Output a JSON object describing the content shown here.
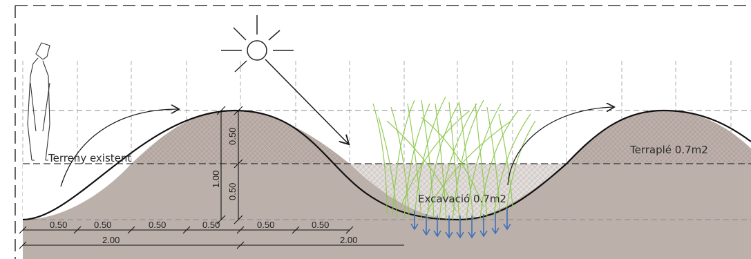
{
  "labels": {
    "existing_ground": "Terreny existent",
    "embankment": "Terraplé 0.7m2",
    "excavation": "Excavació 0.7m2"
  },
  "dimensions": {
    "vertical_upper": "0.50",
    "vertical_lower": "0.50",
    "vertical_total": "1.00",
    "horizontal_segments": [
      "0.50",
      "0.50",
      "0.50",
      "0.50",
      "0.50",
      "0.50"
    ],
    "horizontal_totals": [
      "2.00",
      "2.00"
    ]
  },
  "colors": {
    "ground": "#bcb0ab",
    "fill_hatch": "#b9aca6",
    "excavation_hatch": "#d8d2cf",
    "grass": "#8cc84b",
    "water_arrows": "#3e6fb7",
    "line": "#1a1a1a",
    "frame": "#555555"
  },
  "icons": [
    "person-silhouette-icon",
    "sun-icon",
    "sun-ray-arrow-icon",
    "flow-arrow-icon",
    "drainage-arrow-icon",
    "grass-icon"
  ]
}
